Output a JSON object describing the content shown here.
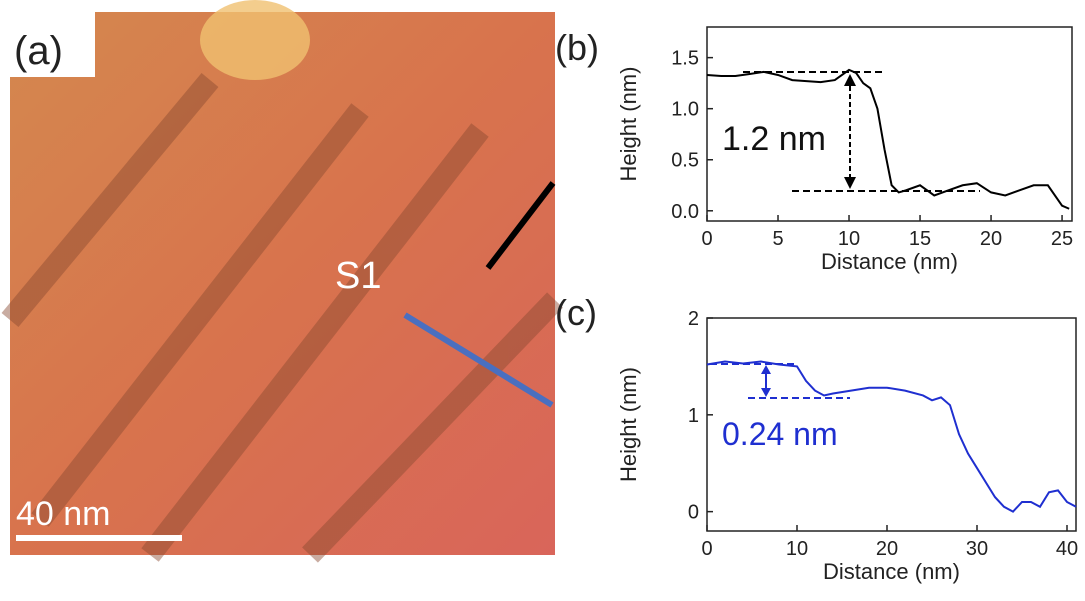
{
  "image": {
    "label": "(a)",
    "annotation": "S1",
    "scale_bar": "40 nm"
  },
  "chart_data": [
    {
      "type": "line",
      "label": "(b)",
      "xlabel": "Distance (nm)",
      "ylabel": "Height (nm)",
      "annotation": "1.2 nm",
      "color": "#000000",
      "x": [
        0,
        1,
        2,
        3,
        4,
        5,
        6,
        7,
        8,
        9,
        10,
        10.5,
        11,
        11.5,
        12,
        12.5,
        13,
        13.5,
        14,
        15,
        16,
        17,
        18,
        19,
        20,
        21,
        22,
        23,
        24,
        25,
        25.5
      ],
      "values": [
        1.33,
        1.32,
        1.32,
        1.34,
        1.36,
        1.33,
        1.28,
        1.27,
        1.26,
        1.28,
        1.38,
        1.35,
        1.25,
        1.2,
        1.0,
        0.6,
        0.25,
        0.18,
        0.2,
        0.25,
        0.15,
        0.2,
        0.25,
        0.27,
        0.18,
        0.15,
        0.2,
        0.25,
        0.25,
        0.05,
        0.02
      ],
      "xlim": [
        0,
        25.7
      ],
      "ylim": [
        -0.1,
        1.8
      ],
      "xticks": [
        0,
        5,
        10,
        15,
        20,
        25
      ],
      "yticks": [
        {
          "value": 0,
          "label": "0.0"
        },
        {
          "value": 0.5,
          "label": "0.5"
        },
        {
          "value": 1,
          "label": "1.0"
        },
        {
          "value": 1.5,
          "label": "1.5"
        }
      ]
    },
    {
      "type": "line",
      "label": "(c)",
      "xlabel": "Distance (nm)",
      "ylabel": "Height (nm)",
      "annotation": "0.24 nm",
      "color": "#1f2fd0",
      "x": [
        0,
        2,
        4,
        6,
        8,
        10,
        11,
        12,
        13,
        14,
        16,
        18,
        20,
        22,
        24,
        25,
        26,
        27,
        28,
        29,
        30,
        31,
        32,
        33,
        34,
        35,
        36,
        37,
        38,
        39,
        40,
        41
      ],
      "values": [
        1.52,
        1.55,
        1.53,
        1.55,
        1.52,
        1.5,
        1.35,
        1.25,
        1.2,
        1.22,
        1.25,
        1.28,
        1.28,
        1.25,
        1.2,
        1.15,
        1.18,
        1.1,
        0.8,
        0.6,
        0.45,
        0.3,
        0.15,
        0.05,
        0.0,
        0.1,
        0.1,
        0.05,
        0.2,
        0.22,
        0.1,
        0.05
      ],
      "xlim": [
        0,
        41
      ],
      "ylim": [
        -0.2,
        2
      ],
      "xticks": [
        0,
        10,
        20,
        30,
        40
      ],
      "yticks": [
        0,
        1,
        2
      ]
    }
  ]
}
